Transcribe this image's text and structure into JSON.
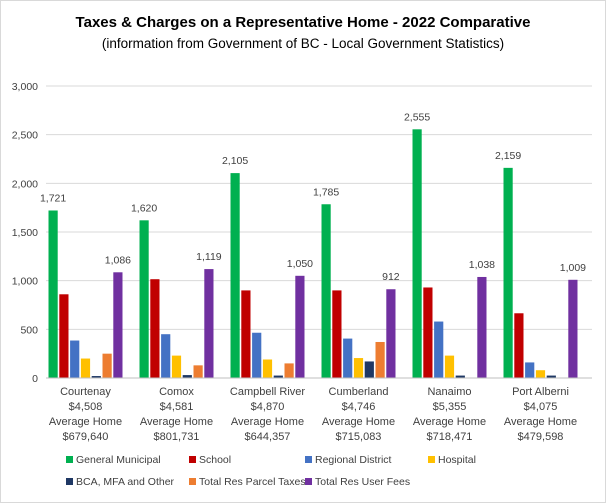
{
  "chart_data": {
    "type": "bar",
    "title": "Taxes & Charges on a Representative Home - 2022 Comparative",
    "subtitle": "(information from Government  of BC - Local Government Statistics)",
    "ylim": [
      0,
      3000
    ],
    "yticks": [
      "0",
      "500",
      "1,000",
      "1,500",
      "2,000",
      "2,500",
      "3,000"
    ],
    "ytick_values": [
      0,
      500,
      1000,
      1500,
      2000,
      2500,
      3000
    ],
    "grid": true,
    "legend_position": "bottom",
    "categories": [
      [
        "Courtenay",
        "$4,508",
        "Average Home",
        "$679,640"
      ],
      [
        "Comox",
        "$4,581",
        "Average Home",
        "$801,731"
      ],
      [
        "Campbell River",
        "$4,870",
        "Average Home",
        "$644,357"
      ],
      [
        "Cumberland",
        "$4,746",
        "Average Home",
        "$715,083"
      ],
      [
        "Nanaimo",
        "$5,355",
        "Average Home",
        "$718,471"
      ],
      [
        "Port Alberni",
        "$4,075",
        "Average Home",
        "$479,598"
      ]
    ],
    "series": [
      {
        "name": "General Municipal",
        "color": "#00b050",
        "values": [
          1721,
          1620,
          2105,
          1785,
          2555,
          2159
        ],
        "labels": [
          "1,721",
          "1,620",
          "2,105",
          "1,785",
          "2,555",
          "2,159"
        ]
      },
      {
        "name": "School",
        "color": "#c00000",
        "values": [
          860,
          1015,
          900,
          900,
          930,
          665
        ],
        "labels": null
      },
      {
        "name": "Regional District",
        "color": "#4472c4",
        "values": [
          385,
          450,
          465,
          405,
          580,
          160
        ],
        "labels": null
      },
      {
        "name": "Hospital",
        "color": "#ffc000",
        "values": [
          200,
          230,
          190,
          205,
          230,
          80
        ],
        "labels": null
      },
      {
        "name": "BCA, MFA and Other",
        "color": "#1f3864",
        "values": [
          20,
          30,
          25,
          170,
          25,
          25
        ],
        "labels": null
      },
      {
        "name": "Total Res Parcel Taxes",
        "color": "#ed7d31",
        "values": [
          250,
          130,
          150,
          370,
          0,
          0
        ],
        "labels": null
      },
      {
        "name": "Total Res User Fees",
        "color": "#7030a0",
        "values": [
          1086,
          1119,
          1050,
          912,
          1038,
          1009
        ],
        "labels": [
          "1,086",
          "1,119",
          "1,050",
          "912",
          "1,038",
          "1,009"
        ]
      }
    ]
  }
}
